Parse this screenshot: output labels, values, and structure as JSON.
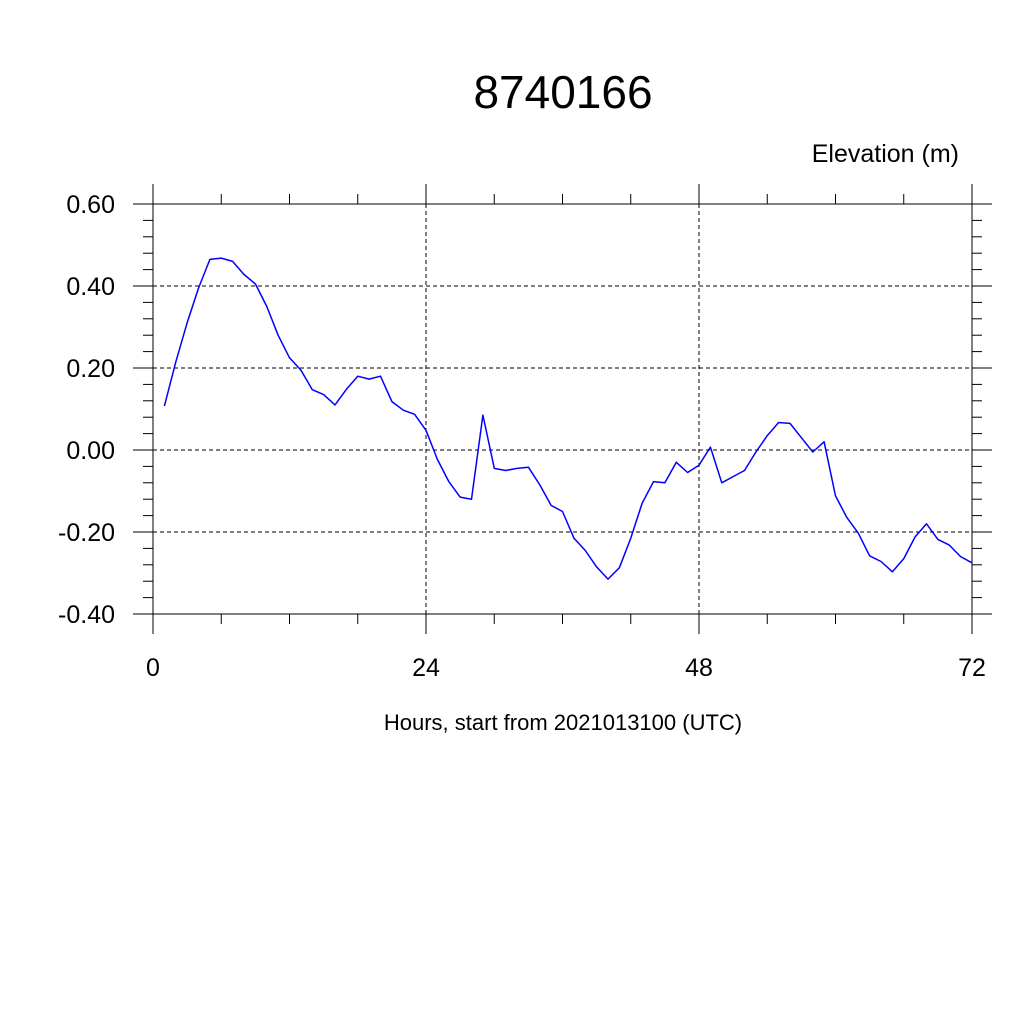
{
  "chart_data": {
    "type": "line",
    "title": "8740166",
    "ylabel": "Elevation (m)",
    "xlabel": "Hours, start from 2021013100 (UTC)",
    "xlim": [
      0,
      72
    ],
    "ylim": [
      -0.4,
      0.6
    ],
    "x_ticks": [
      0,
      24,
      48,
      72
    ],
    "x_tick_labels": [
      "0",
      "24",
      "48",
      "72"
    ],
    "y_ticks": [
      -0.4,
      -0.2,
      0.0,
      0.2,
      0.4,
      0.6
    ],
    "y_tick_labels": [
      "-0.40",
      "-0.20",
      "0.00",
      "0.20",
      "0.40",
      "0.60"
    ],
    "grid": true,
    "line_color": "#0000ff",
    "series": [
      {
        "x": [
          1,
          2,
          3,
          4,
          5,
          6,
          7,
          8,
          9,
          10,
          11,
          12,
          13,
          14,
          15,
          16,
          17,
          18,
          19,
          20,
          21,
          22,
          23,
          24,
          25,
          26,
          27,
          28,
          29,
          30,
          31,
          32,
          33,
          34,
          35,
          36,
          37,
          38,
          39,
          40,
          41,
          42,
          43,
          44,
          45,
          46,
          47,
          48,
          49,
          50,
          51,
          52,
          53,
          54,
          55,
          56,
          57,
          58,
          59,
          60,
          61,
          62,
          63,
          64,
          65,
          66,
          67,
          68,
          69,
          70,
          71,
          72
        ],
        "values": [
          0.107,
          0.215,
          0.31,
          0.395,
          0.465,
          0.468,
          0.46,
          0.428,
          0.405,
          0.35,
          0.28,
          0.225,
          0.195,
          0.147,
          0.135,
          0.11,
          0.148,
          0.18,
          0.173,
          0.18,
          0.118,
          0.097,
          0.087,
          0.048,
          -0.023,
          -0.077,
          -0.115,
          -0.12,
          0.085,
          -0.045,
          -0.05,
          -0.045,
          -0.042,
          -0.085,
          -0.135,
          -0.15,
          -0.215,
          -0.245,
          -0.285,
          -0.315,
          -0.287,
          -0.215,
          -0.13,
          -0.077,
          -0.08,
          -0.03,
          -0.055,
          -0.037,
          0.007,
          -0.08,
          -0.065,
          -0.05,
          -0.005,
          0.035,
          0.067,
          0.065,
          0.03,
          -0.005,
          0.02,
          -0.112,
          -0.165,
          -0.203,
          -0.258,
          -0.272,
          -0.297,
          -0.265,
          -0.212,
          -0.18,
          -0.218,
          -0.232,
          -0.26,
          -0.275
        ]
      }
    ]
  }
}
